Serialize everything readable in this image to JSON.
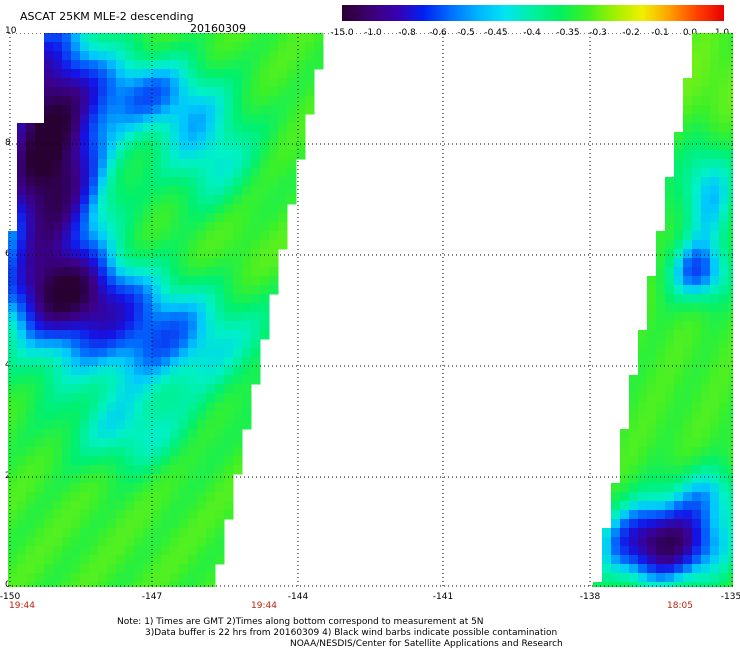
{
  "header": {
    "title": "ASCAT 25KM MLE-2 descending",
    "date": "20160309"
  },
  "colorbar": {
    "labels": [
      "-15.0",
      "-1.0",
      "-0.8",
      "-0.6",
      "-0.5",
      "-0.45",
      "-0.4",
      "-0.35",
      "-0.3",
      "-0.2",
      "-0.1",
      "0.0",
      "1.0"
    ],
    "colors": [
      "#2a0030",
      "#3c0070",
      "#3a00b0",
      "#0020f0",
      "#0070ff",
      "#00b4ff",
      "#00e6f0",
      "#00f0a0",
      "#00f060",
      "#40f020",
      "#a0f000",
      "#f0f000",
      "#ffa000",
      "#ff4000",
      "#e80000"
    ]
  },
  "axes": {
    "y_ticks": [
      "0",
      "2",
      "4",
      "6",
      "8",
      "10"
    ],
    "x_ticks": [
      "-150",
      "-147",
      "-144",
      "-141",
      "-138",
      "-135"
    ],
    "time_labels": [
      "19:44",
      "19:44",
      "18:05"
    ]
  },
  "notes": {
    "line1": "Note: 1) Times are GMT 2)Times along bottom correspond to measurement at 5N",
    "line2": "3)Data buffer is 22 hrs from 20160309 4) Black wind barbs indicate possible contamination",
    "line3": "NOAA/NESDIS/Center for Satellite Applications and Research"
  }
}
